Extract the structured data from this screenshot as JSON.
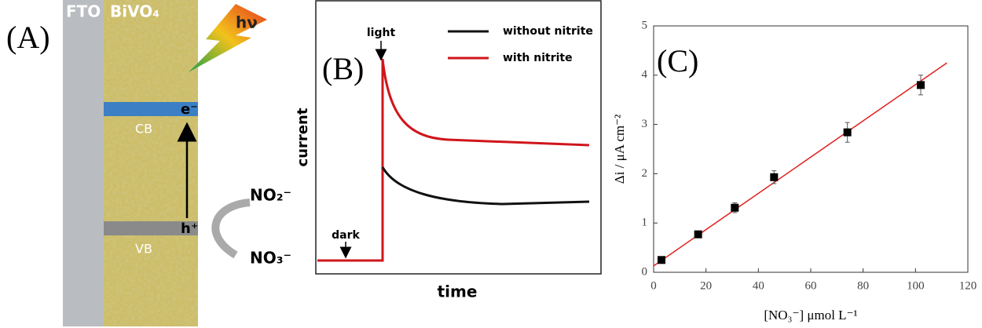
{
  "panels": {
    "A": {
      "label": "(A)",
      "fto": "FTO",
      "bivo4": "BiVO₄",
      "hv": "hν",
      "cb": "CB",
      "vb": "VB",
      "electron": "e⁻",
      "hole": "h⁺",
      "no2": "NO₂⁻",
      "no3": "NO₃⁻"
    },
    "B": {
      "label": "(B)",
      "y_label": "current",
      "x_label": "time",
      "light": "light",
      "dark": "dark",
      "legend": [
        {
          "name": "without nitrite",
          "color": "#111111"
        },
        {
          "name": "with nitrite",
          "color": "#d0161b"
        }
      ]
    }
  },
  "chart_data": {
    "type": "scatter",
    "label": "(C)",
    "x_label": "[NO₃⁻] μmol L⁻¹",
    "y_label": "Δi / μA cm⁻²",
    "xlim": [
      0,
      120
    ],
    "xticks": [
      0,
      20,
      40,
      60,
      80,
      100,
      120
    ],
    "ylim": [
      0,
      5
    ],
    "yticks": [
      0,
      1,
      2,
      3,
      4,
      5
    ],
    "x": [
      3,
      17,
      31,
      46,
      74,
      102
    ],
    "series": [
      {
        "color": "#000000",
        "values": [
          0.25,
          0.77,
          1.31,
          1.93,
          2.84,
          3.8
        ],
        "errors": [
          0.05,
          0.06,
          0.1,
          0.13,
          0.2,
          0.2
        ]
      }
    ],
    "fit_line": {
      "color": "#e02020",
      "x": [
        0,
        112
      ],
      "y": [
        0.13,
        4.25
      ]
    }
  }
}
